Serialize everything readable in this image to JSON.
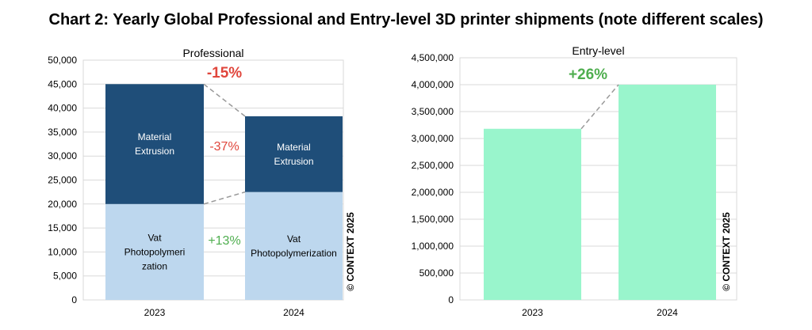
{
  "chart_title": "Chart 2: Yearly Global Professional and Entry-level 3D printer shipments (note different scales)",
  "watermark": "© CONTEXT 2025",
  "chart_data": [
    {
      "type": "bar",
      "stacked": true,
      "title": "Professional",
      "categories": [
        "2023",
        "2024"
      ],
      "series": [
        {
          "name": "Vat Photopolymerization",
          "labels": [
            "Vat\nPhotopolymeri\nzation",
            "Vat\nPhotopolymerization"
          ],
          "values": [
            20000,
            22500
          ],
          "color": "#bdd7ee"
        },
        {
          "name": "Material Extrusion",
          "labels": [
            "Material\nExtrusion",
            "Material\nExtrusion"
          ],
          "values": [
            25000,
            15800
          ],
          "color": "#1f4e79"
        }
      ],
      "ylim": [
        0,
        50000
      ],
      "yticks": [
        "0",
        "5,000",
        "10,000",
        "15,000",
        "20,000",
        "25,000",
        "30,000",
        "35,000",
        "40,000",
        "45,000",
        "50,000"
      ],
      "annotations": {
        "total_change": "-15%",
        "extrusion_change": "-37%",
        "vat_change": "+13%"
      },
      "grid": true
    },
    {
      "type": "bar",
      "title": "Entry-level",
      "categories": [
        "2023",
        "2024"
      ],
      "values": [
        3180000,
        4000000
      ],
      "color": "#99f5cc",
      "ylim": [
        0,
        4500000
      ],
      "yticks": [
        "0",
        "500,000",
        "1,000,000",
        "1,500,000",
        "2,000,000",
        "2,500,000",
        "3,000,000",
        "3,500,000",
        "4,000,000",
        "4,500,000"
      ],
      "annotations": {
        "total_change": "+26%"
      },
      "grid": true
    }
  ],
  "colors": {
    "negative": "#e0463c",
    "positive": "#4fae4f",
    "connector": "#999999",
    "grid": "#d9d9d9"
  }
}
